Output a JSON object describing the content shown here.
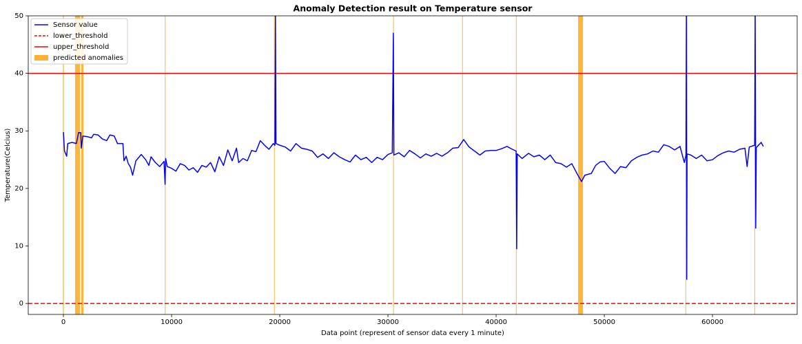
{
  "chart_data": {
    "type": "line",
    "title": "Anomaly Detection result on Temperature sensor",
    "x_label": "Data point (represent of sensor data every 1 minute)",
    "y_label": "Temperature(Celcius)",
    "xlim": [
      -3250,
      67830
    ],
    "ylim": [
      -1.9,
      50
    ],
    "xticks": [
      0,
      10000,
      20000,
      30000,
      40000,
      50000,
      60000
    ],
    "yticks": [
      0,
      10,
      20,
      30,
      40,
      50
    ],
    "legend": "upper left",
    "series": [
      {
        "name": "Sensor value",
        "color": "#0000ff",
        "x": [
          0,
          100,
          300,
          400,
          800,
          1200,
          1400,
          1600,
          1650,
          1800,
          2200,
          2600,
          2800,
          3200,
          3600,
          4000,
          4300,
          4700,
          5000,
          5500,
          5600,
          5800,
          6000,
          6200,
          6400,
          6700,
          7200,
          7600,
          7900,
          8100,
          8500,
          8900,
          9300,
          9400,
          9450,
          9600,
          10000,
          10400,
          10800,
          11200,
          11600,
          12000,
          12400,
          12800,
          13200,
          13600,
          14000,
          14400,
          14800,
          15200,
          15600,
          16000,
          16200,
          16600,
          17000,
          17400,
          17800,
          18200,
          18600,
          19000,
          19400,
          19550,
          19600,
          19650,
          20000,
          20500,
          21000,
          21500,
          22000,
          22500,
          23000,
          23500,
          24000,
          24500,
          25000,
          25500,
          26000,
          26500,
          27000,
          27500,
          28000,
          28500,
          29000,
          29500,
          30000,
          30400,
          30500,
          30550,
          31000,
          31500,
          32000,
          32500,
          33000,
          33500,
          34000,
          34500,
          35000,
          35500,
          36000,
          36500,
          37000,
          37500,
          38000,
          38500,
          39000,
          39500,
          40000,
          40500,
          41000,
          41500,
          41850,
          41900,
          41950,
          42400,
          43000,
          43500,
          44000,
          44500,
          45000,
          45500,
          46000,
          46500,
          47000,
          47500,
          47900,
          48200,
          48800,
          49200,
          49600,
          50000,
          50500,
          51000,
          51500,
          52000,
          52500,
          53000,
          53500,
          54000,
          54500,
          55000,
          55500,
          56000,
          56500,
          57000,
          57400,
          57550,
          57600,
          57620,
          57650,
          58000,
          58500,
          59000,
          59500,
          60000,
          60500,
          61000,
          61500,
          62000,
          62500,
          63000,
          63200,
          63400,
          63900,
          63950,
          64000,
          64050,
          64300,
          64500,
          64700
        ],
        "values": [
          29.8,
          26.5,
          25.6,
          27.8,
          28,
          27.8,
          29.7,
          29.7,
          27,
          29.1,
          29,
          28.8,
          29.4,
          29.3,
          28.6,
          28.3,
          29.3,
          29.1,
          27.8,
          27.8,
          24.8,
          25.6,
          24.3,
          23.7,
          22.3,
          24.8,
          25.9,
          25,
          24,
          25.5,
          24.5,
          23.8,
          24.7,
          20.7,
          25.2,
          23.8,
          23.5,
          23,
          24.3,
          24,
          23.2,
          23.6,
          22.8,
          24,
          23.7,
          24.5,
          22.9,
          25.5,
          24,
          26.7,
          24.8,
          27,
          24.5,
          25.2,
          24.8,
          26.6,
          26.4,
          28.3,
          27.5,
          26.8,
          27.8,
          27.5,
          50,
          27.8,
          27.5,
          27.2,
          26.5,
          27.8,
          27,
          26.8,
          26.5,
          25.4,
          26,
          25.2,
          26.2,
          25.5,
          25,
          24.6,
          25.8,
          25,
          25.4,
          24.5,
          25.4,
          25,
          25.9,
          26.2,
          47,
          25.8,
          26.2,
          25.5,
          26.6,
          26,
          25.3,
          26,
          25.6,
          26.1,
          25.6,
          26.2,
          27,
          27.1,
          28.5,
          27.2,
          26.5,
          25.8,
          26.5,
          26.6,
          26.6,
          26.9,
          27.3,
          26.8,
          26.5,
          9.5,
          26,
          25.2,
          26.1,
          25.5,
          25.8,
          25,
          25.8,
          24.5,
          24.3,
          23.7,
          24.3,
          22.5,
          21.2,
          22.3,
          22.6,
          24,
          24.6,
          24.7,
          23.5,
          22.6,
          23.8,
          23.6,
          24.8,
          25.4,
          25.8,
          26,
          26.5,
          26.3,
          27.6,
          27.3,
          26.7,
          27.3,
          24.5,
          25.8,
          50,
          4.2,
          26,
          25.8,
          25.2,
          25.8,
          24.8,
          25,
          25.7,
          26.2,
          26.5,
          26.3,
          26.8,
          27,
          23.8,
          27.2,
          27.5,
          50,
          13.1,
          27.1,
          27.6,
          28,
          27.3
        ]
      }
    ],
    "hlines": [
      {
        "name": "lower_threshold",
        "color": "#ff0000",
        "style": "dashed",
        "value": 0
      },
      {
        "name": "upper_threshold",
        "color": "#ff0000",
        "style": "solid",
        "value": 40
      }
    ],
    "spans": {
      "name": "predicted anomalies",
      "color": "#fbb233",
      "ranges": [
        [
          -40,
          40
        ],
        [
          1080,
          1550
        ],
        [
          1650,
          1850
        ],
        [
          9380,
          9430
        ],
        [
          19470,
          19530
        ],
        [
          30480,
          30530
        ],
        [
          36860,
          36910
        ],
        [
          41830,
          41880
        ],
        [
          47580,
          48030
        ],
        [
          57500,
          57550
        ],
        [
          63870,
          63920
        ]
      ]
    }
  }
}
